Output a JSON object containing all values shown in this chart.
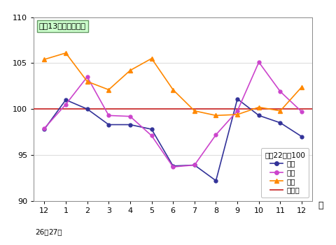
{
  "x_labels": [
    "12",
    "1",
    "2",
    "3",
    "4",
    "5",
    "6",
    "7",
    "8",
    "9",
    "10",
    "11",
    "12"
  ],
  "x_indices": [
    0,
    1,
    2,
    3,
    4,
    5,
    6,
    7,
    8,
    9,
    10,
    11,
    12
  ],
  "seisan": [
    97.8,
    101.0,
    100.0,
    98.3,
    98.3,
    97.8,
    93.8,
    93.9,
    92.2,
    101.1,
    99.3,
    98.5,
    97.0
  ],
  "shukka": [
    97.9,
    100.5,
    103.5,
    99.3,
    99.2,
    97.1,
    93.7,
    93.9,
    97.2,
    99.8,
    105.1,
    101.9,
    99.7
  ],
  "zaiko": [
    105.4,
    106.1,
    103.0,
    102.1,
    104.2,
    105.5,
    102.1,
    99.8,
    99.3,
    99.4,
    100.2,
    99.8,
    102.4
  ],
  "kijun": 100.0,
  "seisan_color": "#333399",
  "shukka_color": "#cc44cc",
  "zaiko_color": "#ff8800",
  "kijun_color": "#cc3333",
  "ylim": [
    90,
    110
  ],
  "yticks": [
    90,
    95,
    100,
    105,
    110
  ],
  "title": "最近13か月間の動き",
  "ylabel": "平成22年＝100",
  "legend_seisan": "生産",
  "legend_shukka": "出荷",
  "legend_zaiko": "在庫",
  "legend_kijun": "基準値",
  "xlabel_month": "月",
  "xlabel_sub1": "26年",
  "xlabel_sub2": "27年",
  "bg_color": "#ffffff"
}
